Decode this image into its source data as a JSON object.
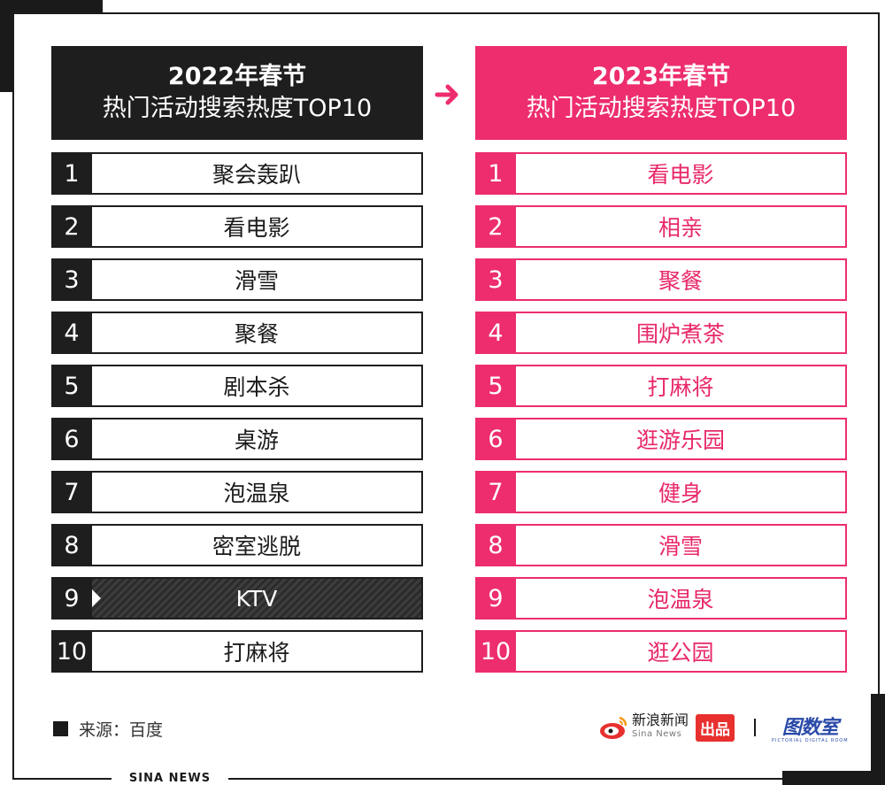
{
  "left": {
    "year_title": "2022年春节",
    "subtitle": "热门活动搜索热度TOP10",
    "items": [
      {
        "rank": "1",
        "label": "聚会轰趴"
      },
      {
        "rank": "2",
        "label": "看电影"
      },
      {
        "rank": "3",
        "label": "滑雪"
      },
      {
        "rank": "4",
        "label": "聚餐"
      },
      {
        "rank": "5",
        "label": "剧本杀"
      },
      {
        "rank": "6",
        "label": "桌游"
      },
      {
        "rank": "7",
        "label": "泡温泉"
      },
      {
        "rank": "8",
        "label": "密室逃脱"
      },
      {
        "rank": "9",
        "label": "KTV"
      },
      {
        "rank": "10",
        "label": "打麻将"
      }
    ],
    "color": "#1e1e1e"
  },
  "right": {
    "year_title": "2023年春节",
    "subtitle": "热门活动搜索热度TOP10",
    "items": [
      {
        "rank": "1",
        "label": "看电影"
      },
      {
        "rank": "2",
        "label": "相亲"
      },
      {
        "rank": "3",
        "label": "聚餐"
      },
      {
        "rank": "4",
        "label": "围炉煮茶"
      },
      {
        "rank": "5",
        "label": "打麻将"
      },
      {
        "rank": "6",
        "label": "逛游乐园"
      },
      {
        "rank": "7",
        "label": "健身"
      },
      {
        "rank": "8",
        "label": "滑雪"
      },
      {
        "rank": "9",
        "label": "泡温泉"
      },
      {
        "rank": "10",
        "label": "逛公园"
      }
    ],
    "color": "#ed2d6e"
  },
  "arrow_icon": "arrow-right-icon",
  "source": "来源：百度",
  "brand": {
    "logo_icon": "sina-logo-icon",
    "name_cn": "新浪新闻",
    "name_en": "Sina News",
    "tag": "出品",
    "partner": "图数室",
    "partner_sub": "PICTORIAL DIGITAL ROOM"
  },
  "frame_label": "SINA NEWS"
}
